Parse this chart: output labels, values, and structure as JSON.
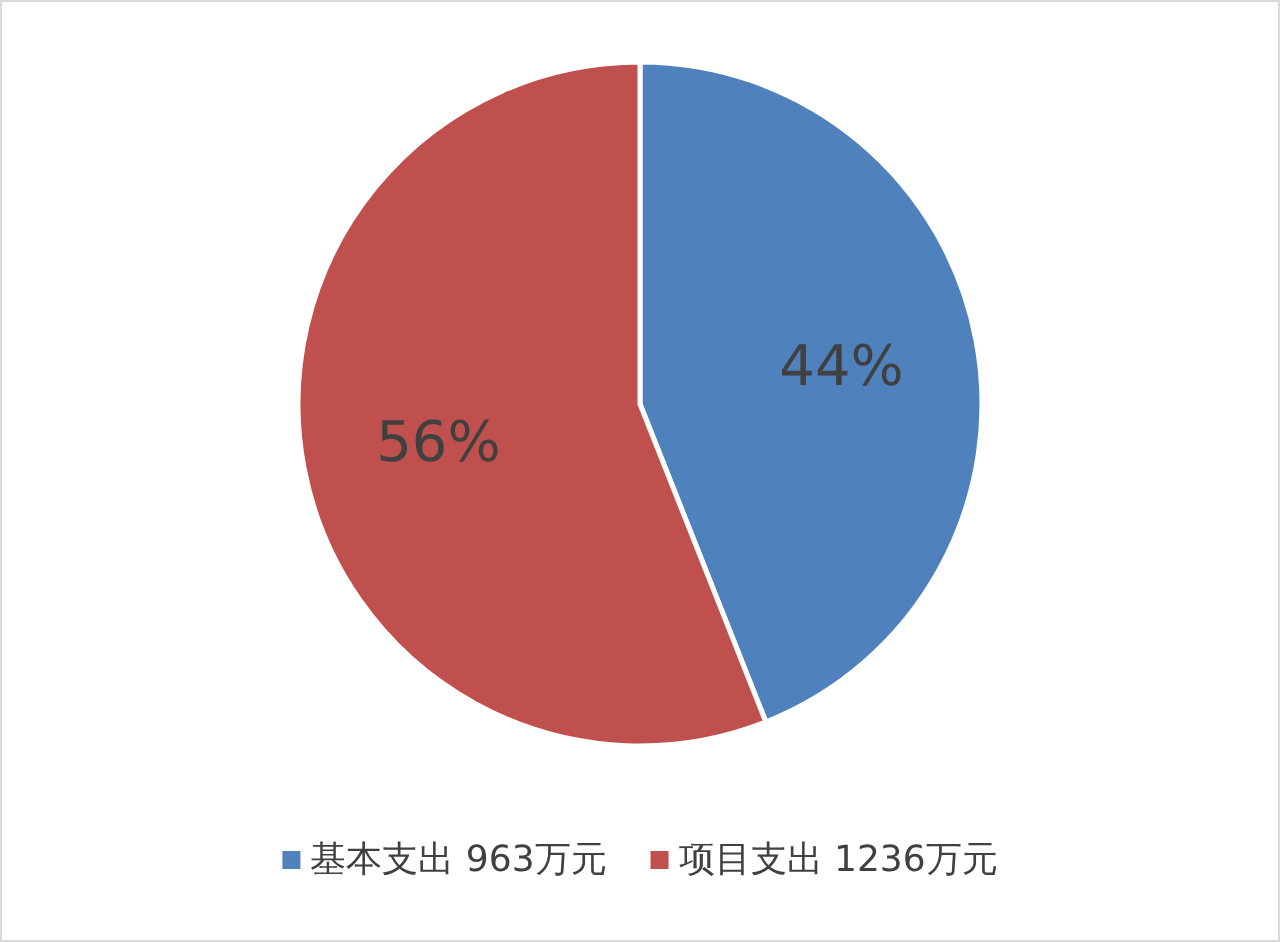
{
  "chart_data": {
    "type": "pie",
    "categories": [
      "基本支出 963万元",
      "项目支出 1236万元"
    ],
    "values": [
      44,
      56
    ],
    "colors": [
      "#4f81bd",
      "#c0504d"
    ],
    "value_labels": [
      "44%",
      "56%"
    ],
    "legend": "bottom"
  }
}
